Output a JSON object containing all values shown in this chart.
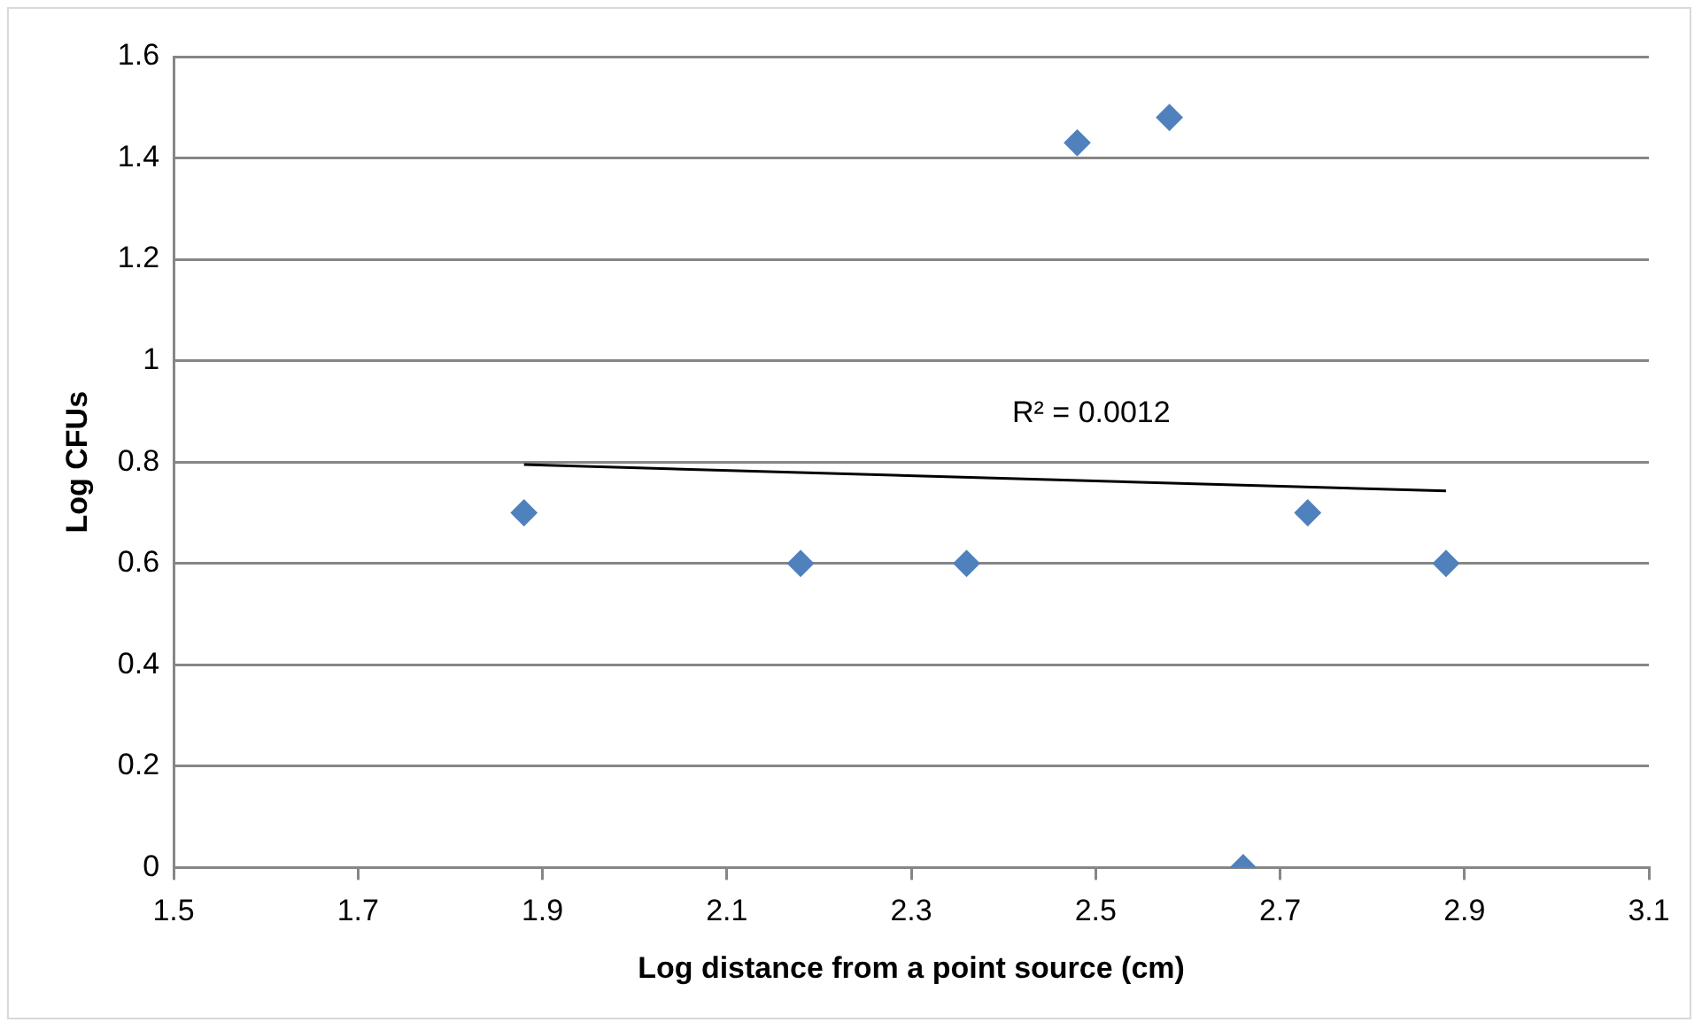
{
  "chart_data": {
    "type": "scatter",
    "xlabel": "Log distance from a point source (cm)",
    "ylabel": "Log CFUs",
    "series": [
      {
        "color": "#4f81bd",
        "marker": "diamond",
        "x": [
          1.88,
          2.18,
          2.36,
          2.48,
          2.58,
          2.66,
          2.73,
          2.88
        ],
        "values": [
          0.7,
          0.6,
          0.6,
          1.43,
          1.48,
          0,
          0.7,
          0.6
        ]
      },
      {
        "type": "line",
        "color": "#000000",
        "marker": "none",
        "x": [
          1.88,
          2.88
        ],
        "values": [
          0.795,
          0.743
        ]
      }
    ],
    "xlim": [
      1.5,
      3.1
    ],
    "xticks": [
      1.5,
      1.7,
      1.9,
      2.1,
      2.3,
      2.5,
      2.7,
      2.9,
      3.1
    ],
    "ylim": [
      0,
      1.6
    ],
    "yticks": [
      0,
      0.2,
      0.4,
      0.6,
      0.8,
      1,
      1.2,
      1.4,
      1.6
    ],
    "grid": "y",
    "legend": false,
    "annotations": [
      "R² = 0.0012"
    ]
  }
}
